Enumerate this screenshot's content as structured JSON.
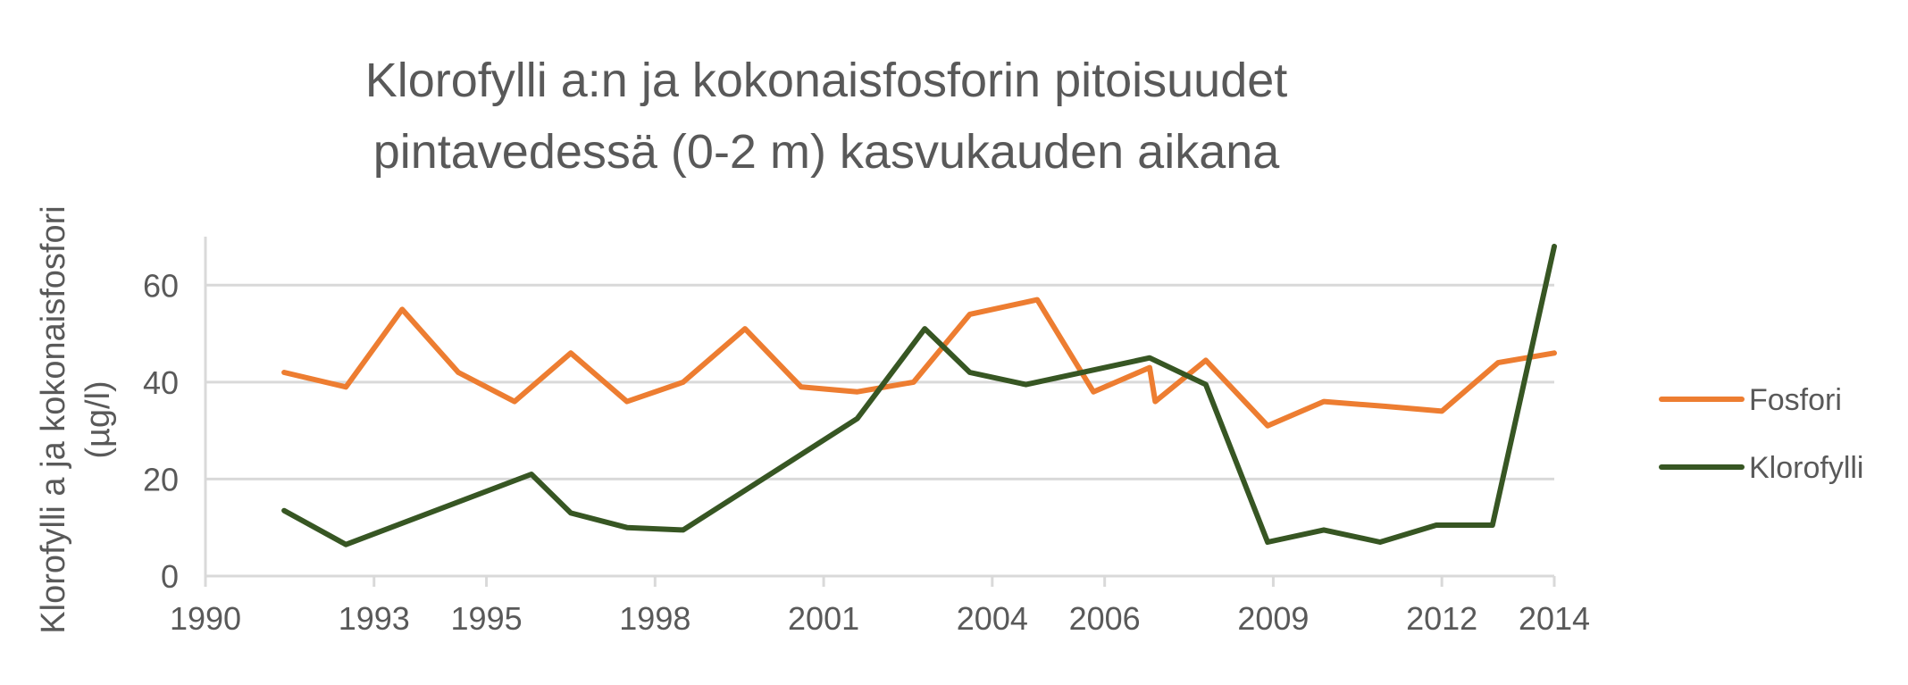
{
  "chart_data": {
    "type": "line",
    "title": "Klorofylli a:n ja kokonaisfosforin pitoisuudet pintavedessä (0-2 m) kasvukauden aikana",
    "title_lines": [
      "Klorofylli a:n ja kokonaisfosforin pitoisuudet",
      "pintavedessä (0-2 m) kasvukauden aikana"
    ],
    "xlabel": "",
    "ylabel": "Klorofylli a ja kokonaisfosfori",
    "ylabel_unit": "(µg/l)",
    "xlim": [
      1990,
      2014
    ],
    "ylim": [
      0,
      70
    ],
    "x_ticks": [
      1990,
      1993,
      1995,
      1998,
      2001,
      2004,
      2006,
      2009,
      2012,
      2014
    ],
    "x_tick_labels": [
      "1990",
      "1993",
      "1995",
      "1998",
      "2001",
      "2004",
      "2006",
      "2009",
      "2012",
      "2014"
    ],
    "y_ticks": [
      0,
      20,
      40,
      60
    ],
    "y_tick_labels": [
      "0",
      "20",
      "40",
      "60"
    ],
    "grid": true,
    "legend_position": "right",
    "series": [
      {
        "name": "Fosfori",
        "color": "#ED7D31",
        "points": [
          [
            1991.4,
            42
          ],
          [
            1992.5,
            39
          ],
          [
            1993.5,
            55
          ],
          [
            1994.5,
            42
          ],
          [
            1995.5,
            36
          ],
          [
            1996.5,
            46
          ],
          [
            1997.5,
            36
          ],
          [
            1998.5,
            40
          ],
          [
            1999.6,
            51
          ],
          [
            2000.6,
            39
          ],
          [
            2001.6,
            38
          ],
          [
            2002.6,
            40
          ],
          [
            2003.6,
            54
          ],
          [
            2004.8,
            57
          ],
          [
            2005.8,
            38
          ],
          [
            2006.8,
            43
          ],
          [
            2006.9,
            36
          ],
          [
            2007.8,
            44.5
          ],
          [
            2008.9,
            31
          ],
          [
            2009.9,
            36
          ],
          [
            2011.0,
            35
          ],
          [
            2012.0,
            34
          ],
          [
            2013.0,
            44
          ],
          [
            2014.0,
            46
          ]
        ]
      },
      {
        "name": "Klorofylli",
        "color": "#375623",
        "points": [
          [
            1991.4,
            13.5
          ],
          [
            1992.5,
            6.5
          ],
          [
            1995.8,
            21
          ],
          [
            1996.5,
            13
          ],
          [
            1997.5,
            10
          ],
          [
            1998.5,
            9.5
          ],
          [
            2001.6,
            32.5
          ],
          [
            2002.8,
            51
          ],
          [
            2003.6,
            42
          ],
          [
            2004.6,
            39.5
          ],
          [
            2006.8,
            45
          ],
          [
            2007.8,
            39.5
          ],
          [
            2008.9,
            7
          ],
          [
            2009.9,
            9.5
          ],
          [
            2010.9,
            7
          ],
          [
            2011.9,
            10.5
          ],
          [
            2012.9,
            10.5
          ],
          [
            2014.0,
            68
          ]
        ]
      }
    ]
  }
}
